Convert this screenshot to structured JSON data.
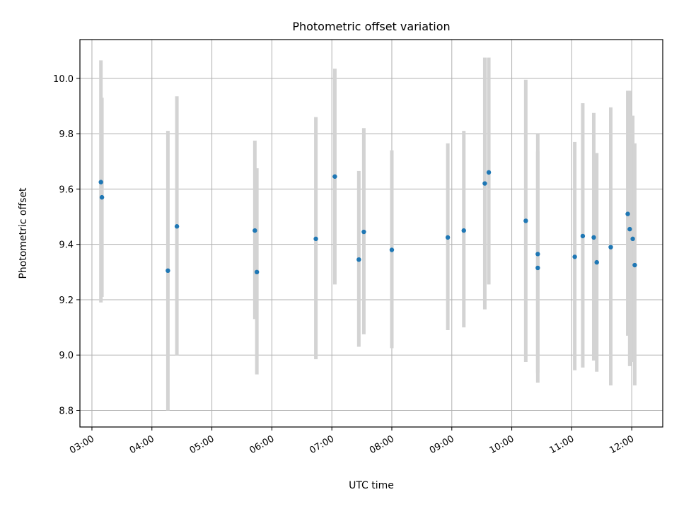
{
  "chart_data": {
    "type": "scatter",
    "title": "Photometric offset variation",
    "xlabel": "UTC time",
    "ylabel": "Photometric offset",
    "xlim": [
      "02:48",
      "12:31"
    ],
    "ylim": [
      8.74,
      10.14
    ],
    "grid": true,
    "x_ticks": [
      "03:00",
      "04:00",
      "05:00",
      "06:00",
      "07:00",
      "08:00",
      "09:00",
      "10:00",
      "11:00",
      "12:00"
    ],
    "y_ticks": [
      "8.8",
      "9.0",
      "9.2",
      "9.4",
      "9.6",
      "9.8",
      "10.0"
    ],
    "point_color": "#1f77b4",
    "errorbar_color": "#d3d3d3",
    "points": [
      {
        "x": "03:09",
        "y": 9.625,
        "lo": 9.19,
        "hi": 10.065
      },
      {
        "x": "03:10",
        "y": 9.57,
        "lo": 9.21,
        "hi": 9.93
      },
      {
        "x": "04:16",
        "y": 9.305,
        "lo": 8.8,
        "hi": 9.81
      },
      {
        "x": "04:25",
        "y": 9.465,
        "lo": 9.0,
        "hi": 9.935
      },
      {
        "x": "05:43",
        "y": 9.45,
        "lo": 9.13,
        "hi": 9.775
      },
      {
        "x": "05:45",
        "y": 9.3,
        "lo": 8.93,
        "hi": 9.675
      },
      {
        "x": "06:44",
        "y": 9.42,
        "lo": 8.985,
        "hi": 9.86
      },
      {
        "x": "07:03",
        "y": 9.645,
        "lo": 9.255,
        "hi": 10.035
      },
      {
        "x": "07:27",
        "y": 9.345,
        "lo": 9.03,
        "hi": 9.665
      },
      {
        "x": "07:32",
        "y": 9.445,
        "lo": 9.075,
        "hi": 9.82
      },
      {
        "x": "08:00",
        "y": 9.38,
        "lo": 9.025,
        "hi": 9.74
      },
      {
        "x": "08:56",
        "y": 9.425,
        "lo": 9.09,
        "hi": 9.765
      },
      {
        "x": "09:12",
        "y": 9.45,
        "lo": 9.1,
        "hi": 9.81
      },
      {
        "x": "09:33",
        "y": 9.62,
        "lo": 9.165,
        "hi": 10.075
      },
      {
        "x": "09:37",
        "y": 9.66,
        "lo": 9.255,
        "hi": 10.075
      },
      {
        "x": "10:14",
        "y": 9.485,
        "lo": 8.975,
        "hi": 9.995
      },
      {
        "x": "10:26",
        "y": 9.365,
        "lo": 8.935,
        "hi": 9.8
      },
      {
        "x": "10:26",
        "y": 9.315,
        "lo": 8.9,
        "hi": 9.735
      },
      {
        "x": "11:03",
        "y": 9.355,
        "lo": 8.945,
        "hi": 9.77
      },
      {
        "x": "11:11",
        "y": 9.43,
        "lo": 8.955,
        "hi": 9.91
      },
      {
        "x": "11:22",
        "y": 9.425,
        "lo": 8.98,
        "hi": 9.875
      },
      {
        "x": "11:25",
        "y": 9.335,
        "lo": 8.94,
        "hi": 9.73
      },
      {
        "x": "11:39",
        "y": 9.39,
        "lo": 8.89,
        "hi": 9.895
      },
      {
        "x": "11:56",
        "y": 9.51,
        "lo": 9.07,
        "hi": 9.955
      },
      {
        "x": "11:58",
        "y": 9.455,
        "lo": 8.96,
        "hi": 9.955
      },
      {
        "x": "12:01",
        "y": 9.42,
        "lo": 8.975,
        "hi": 9.865
      },
      {
        "x": "12:03",
        "y": 9.325,
        "lo": 8.89,
        "hi": 9.765
      }
    ]
  }
}
